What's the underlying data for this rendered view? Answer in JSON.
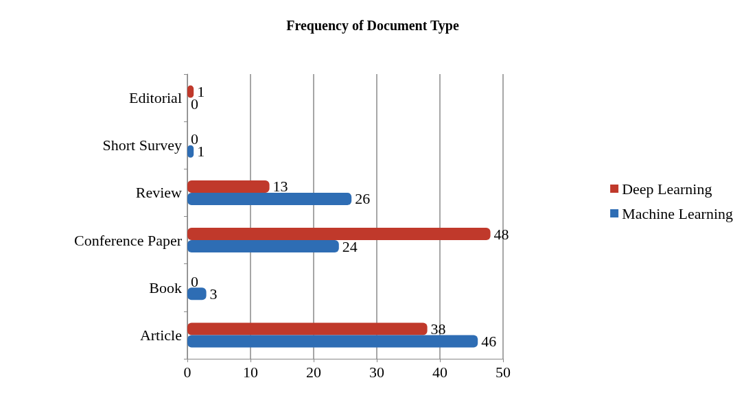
{
  "chart_data": {
    "type": "bar",
    "orientation": "horizontal",
    "title": "Frequency of Document Type",
    "categories": [
      "Editorial",
      "Short Survey",
      "Review",
      "Conference Paper",
      "Book",
      "Article"
    ],
    "series": [
      {
        "name": "Deep Learning",
        "color": "#c0392b",
        "values": [
          1,
          0,
          13,
          48,
          0,
          38
        ]
      },
      {
        "name": "Machine Learning",
        "color": "#2e6db4",
        "values": [
          0,
          1,
          26,
          24,
          3,
          46
        ]
      }
    ],
    "xlim": [
      0,
      50
    ],
    "xticks": [
      0,
      10,
      20,
      30,
      40,
      50
    ],
    "grid": "x",
    "legend": "right",
    "data_labels": true
  }
}
